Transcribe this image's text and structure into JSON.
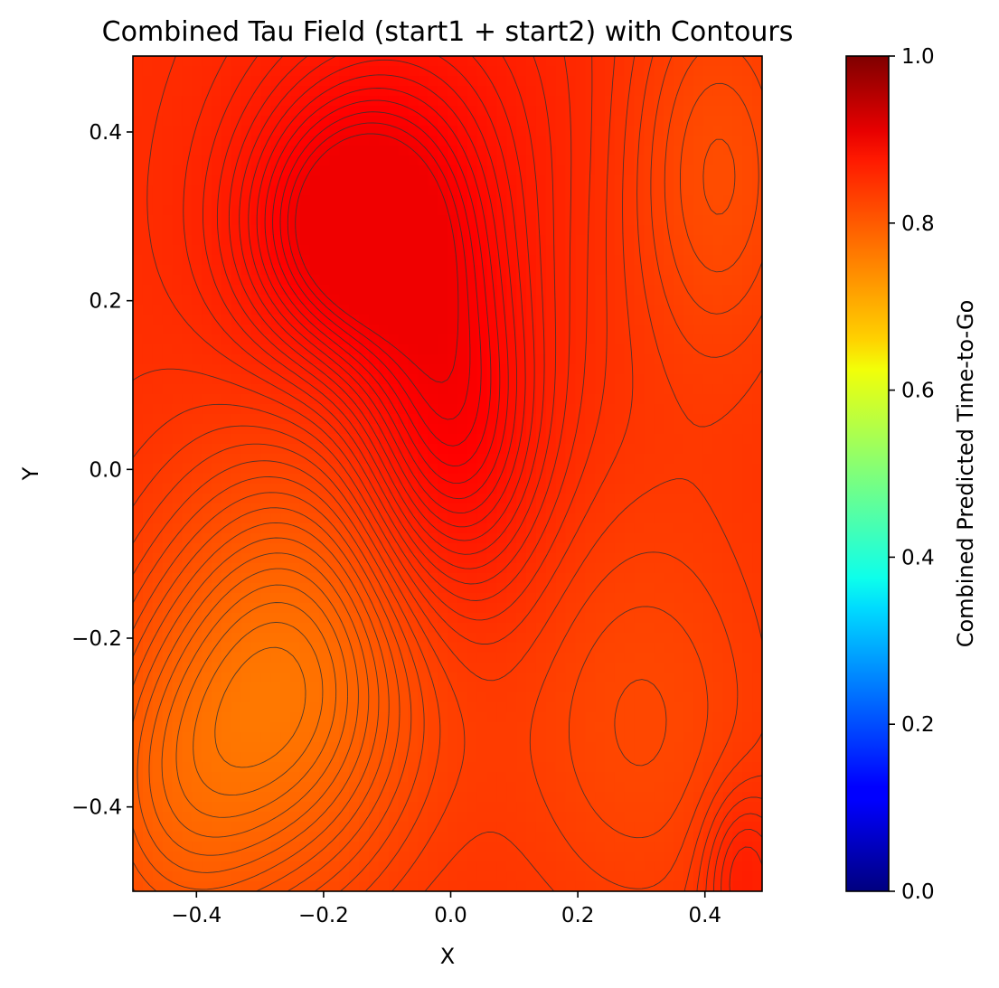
{
  "chart_data": {
    "type": "heatmap",
    "title": "Combined Tau Field (start1 + start2) with Contours",
    "xlabel": "X",
    "ylabel": "Y",
    "xlim": [
      -0.5,
      0.49
    ],
    "ylim": [
      -0.5,
      0.49
    ],
    "x_ticks": [
      {
        "value": -0.4,
        "label": "−0.4"
      },
      {
        "value": -0.2,
        "label": "−0.2"
      },
      {
        "value": 0.0,
        "label": "0.0"
      },
      {
        "value": 0.2,
        "label": "0.2"
      },
      {
        "value": 0.4,
        "label": "0.4"
      }
    ],
    "y_ticks": [
      {
        "value": -0.4,
        "label": "−0.4"
      },
      {
        "value": -0.2,
        "label": "−0.2"
      },
      {
        "value": 0.0,
        "label": "0.0"
      },
      {
        "value": 0.2,
        "label": "0.2"
      },
      {
        "value": 0.4,
        "label": "0.4"
      }
    ],
    "colormap": "jet",
    "colorbar": {
      "label": "Combined Predicted Time-to-Go",
      "range": [
        0.0,
        1.0
      ],
      "ticks": [
        {
          "value": 0.0,
          "label": "0.0"
        },
        {
          "value": 0.2,
          "label": "0.2"
        },
        {
          "value": 0.4,
          "label": "0.4"
        },
        {
          "value": 0.6,
          "label": "0.6"
        },
        {
          "value": 0.8,
          "label": "0.8"
        },
        {
          "value": 1.0,
          "label": "1.0"
        }
      ]
    },
    "field_features": {
      "min_center": {
        "x": -0.25,
        "y": -0.25,
        "value": 0.77
      },
      "max_ridge": [
        {
          "x": -0.15,
          "y": 0.28,
          "value": 0.89
        },
        {
          "x": 0.0,
          "y": 0.05,
          "value": 0.87
        }
      ],
      "value_range": [
        0.74,
        0.89
      ],
      "contour_levels": 30,
      "contour_color": "#333333"
    }
  }
}
